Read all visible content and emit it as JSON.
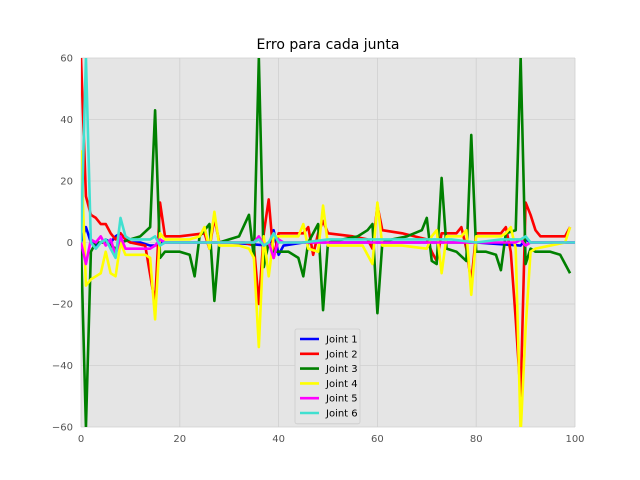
{
  "chart_data": {
    "type": "line",
    "title": "Erro para cada junta",
    "xlabel": "",
    "ylabel": "",
    "xlim": [
      0,
      100
    ],
    "ylim": [
      -60,
      60
    ],
    "x_ticks": [
      0,
      20,
      40,
      60,
      80,
      100
    ],
    "y_ticks": [
      -60,
      -40,
      -20,
      0,
      20,
      40,
      60
    ],
    "grid": true,
    "legend_position": "lower-center",
    "background": "#e5e5e5",
    "series": [
      {
        "name": "Joint 1",
        "color": "#0000ff",
        "points": [
          [
            0,
            0
          ],
          [
            1,
            5
          ],
          [
            2,
            0
          ],
          [
            3,
            -1
          ],
          [
            4,
            0
          ],
          [
            5,
            1
          ],
          [
            6,
            0
          ],
          [
            7,
            2
          ],
          [
            8,
            3
          ],
          [
            9,
            1
          ],
          [
            10,
            0
          ],
          [
            12,
            0
          ],
          [
            14,
            -1
          ],
          [
            15,
            -1
          ],
          [
            16,
            0
          ],
          [
            20,
            0
          ],
          [
            30,
            0
          ],
          [
            38,
            -1
          ],
          [
            39,
            4
          ],
          [
            40,
            -4
          ],
          [
            41,
            -1
          ],
          [
            45,
            0
          ],
          [
            50,
            0
          ],
          [
            60,
            0
          ],
          [
            70,
            0
          ],
          [
            80,
            0
          ],
          [
            89,
            -1
          ],
          [
            90,
            1
          ],
          [
            91,
            0
          ],
          [
            100,
            0
          ]
        ]
      },
      {
        "name": "Joint 2",
        "color": "#ff0000",
        "points": [
          [
            0,
            60
          ],
          [
            1,
            15
          ],
          [
            2,
            9
          ],
          [
            3,
            8
          ],
          [
            4,
            6
          ],
          [
            5,
            6
          ],
          [
            6,
            3
          ],
          [
            7,
            1
          ],
          [
            8,
            3
          ],
          [
            9,
            1
          ],
          [
            10,
            0
          ],
          [
            13,
            -1
          ],
          [
            15,
            -20
          ],
          [
            16,
            13
          ],
          [
            17,
            2
          ],
          [
            20,
            2
          ],
          [
            25,
            3
          ],
          [
            26,
            -2
          ],
          [
            27,
            8
          ],
          [
            28,
            0
          ],
          [
            33,
            0
          ],
          [
            35,
            -1
          ],
          [
            36,
            -20
          ],
          [
            37,
            3
          ],
          [
            38,
            14
          ],
          [
            39,
            -5
          ],
          [
            40,
            3
          ],
          [
            45,
            3
          ],
          [
            46,
            5
          ],
          [
            47,
            -4
          ],
          [
            48,
            3
          ],
          [
            49,
            7
          ],
          [
            50,
            3
          ],
          [
            55,
            2
          ],
          [
            58,
            1
          ],
          [
            59,
            -2
          ],
          [
            60,
            12
          ],
          [
            61,
            4
          ],
          [
            65,
            3
          ],
          [
            70,
            1
          ],
          [
            71,
            -3
          ],
          [
            72,
            -6
          ],
          [
            73,
            3
          ],
          [
            76,
            3
          ],
          [
            77,
            5
          ],
          [
            78,
            -2
          ],
          [
            79,
            -13
          ],
          [
            80,
            3
          ],
          [
            85,
            3
          ],
          [
            86,
            5
          ],
          [
            87,
            -3
          ],
          [
            88,
            -25
          ],
          [
            89,
            -50
          ],
          [
            90,
            13
          ],
          [
            91,
            9
          ],
          [
            92,
            4
          ],
          [
            93,
            2
          ],
          [
            95,
            2
          ],
          [
            98,
            2
          ],
          [
            99,
            5
          ]
        ]
      },
      {
        "name": "Joint 3",
        "color": "#008000",
        "points": [
          [
            0,
            0
          ],
          [
            1,
            -60
          ],
          [
            2,
            -3
          ],
          [
            3,
            0
          ],
          [
            5,
            0
          ],
          [
            7,
            -2
          ],
          [
            8,
            0
          ],
          [
            10,
            1
          ],
          [
            12,
            2
          ],
          [
            14,
            5
          ],
          [
            15,
            43
          ],
          [
            16,
            -5
          ],
          [
            17,
            -3
          ],
          [
            20,
            -3
          ],
          [
            22,
            -4
          ],
          [
            23,
            -11
          ],
          [
            24,
            2
          ],
          [
            25,
            4
          ],
          [
            26,
            6
          ],
          [
            27,
            -19
          ],
          [
            28,
            0
          ],
          [
            30,
            1
          ],
          [
            32,
            2
          ],
          [
            34,
            9
          ],
          [
            35,
            -5
          ],
          [
            36,
            60
          ],
          [
            37,
            -8
          ],
          [
            38,
            0
          ],
          [
            39,
            -3
          ],
          [
            42,
            -3
          ],
          [
            44,
            -5
          ],
          [
            45,
            -11
          ],
          [
            46,
            0
          ],
          [
            48,
            6
          ],
          [
            49,
            -22
          ],
          [
            50,
            0
          ],
          [
            53,
            1
          ],
          [
            56,
            2
          ],
          [
            58,
            4
          ],
          [
            59,
            6
          ],
          [
            60,
            -23
          ],
          [
            61,
            0
          ],
          [
            63,
            1
          ],
          [
            66,
            2
          ],
          [
            69,
            4
          ],
          [
            70,
            8
          ],
          [
            71,
            -6
          ],
          [
            72,
            -7
          ],
          [
            73,
            21
          ],
          [
            74,
            -2
          ],
          [
            76,
            -3
          ],
          [
            78,
            -6
          ],
          [
            79,
            35
          ],
          [
            80,
            -3
          ],
          [
            82,
            -3
          ],
          [
            84,
            -4
          ],
          [
            85,
            -9
          ],
          [
            86,
            3
          ],
          [
            88,
            4
          ],
          [
            89,
            60
          ],
          [
            90,
            -7
          ],
          [
            91,
            -2
          ],
          [
            92,
            -3
          ],
          [
            95,
            -3
          ],
          [
            97,
            -4
          ],
          [
            99,
            -10
          ]
        ]
      },
      {
        "name": "Joint 4",
        "color": "#ffff00",
        "points": [
          [
            0,
            30
          ],
          [
            1,
            -14
          ],
          [
            2,
            -12
          ],
          [
            3,
            -11
          ],
          [
            4,
            -10
          ],
          [
            5,
            -3
          ],
          [
            6,
            -10
          ],
          [
            7,
            -11
          ],
          [
            8,
            0
          ],
          [
            9,
            -4
          ],
          [
            13,
            -4
          ],
          [
            14,
            -5
          ],
          [
            15,
            -25
          ],
          [
            16,
            3
          ],
          [
            17,
            1
          ],
          [
            20,
            1
          ],
          [
            22,
            1
          ],
          [
            24,
            2
          ],
          [
            25,
            5
          ],
          [
            26,
            -2
          ],
          [
            27,
            10
          ],
          [
            28,
            -1
          ],
          [
            32,
            -1
          ],
          [
            34,
            -2
          ],
          [
            35,
            -5
          ],
          [
            36,
            -34
          ],
          [
            37,
            2
          ],
          [
            38,
            -11
          ],
          [
            39,
            2
          ],
          [
            44,
            2
          ],
          [
            45,
            6
          ],
          [
            46,
            -2
          ],
          [
            48,
            -3
          ],
          [
            49,
            12
          ],
          [
            50,
            -1
          ],
          [
            55,
            -1
          ],
          [
            57,
            -1
          ],
          [
            58,
            -4
          ],
          [
            59,
            -7
          ],
          [
            60,
            13
          ],
          [
            61,
            -1
          ],
          [
            65,
            -1
          ],
          [
            70,
            -2
          ],
          [
            71,
            2
          ],
          [
            72,
            4
          ],
          [
            73,
            -10
          ],
          [
            74,
            2
          ],
          [
            77,
            2
          ],
          [
            78,
            4
          ],
          [
            79,
            -17
          ],
          [
            80,
            2
          ],
          [
            85,
            2
          ],
          [
            86,
            3
          ],
          [
            87,
            5
          ],
          [
            88,
            -2
          ],
          [
            89,
            -62
          ],
          [
            90,
            -28
          ],
          [
            91,
            -3
          ],
          [
            92,
            -2
          ],
          [
            95,
            -1
          ],
          [
            98,
            0
          ],
          [
            99,
            5
          ]
        ]
      },
      {
        "name": "Joint 5",
        "color": "#ff00ff",
        "points": [
          [
            0,
            0
          ],
          [
            1,
            -7
          ],
          [
            2,
            1
          ],
          [
            3,
            0
          ],
          [
            4,
            2
          ],
          [
            5,
            -1
          ],
          [
            6,
            1
          ],
          [
            7,
            -4
          ],
          [
            8,
            2
          ],
          [
            9,
            -2
          ],
          [
            10,
            -2
          ],
          [
            14,
            -2
          ],
          [
            15,
            -1
          ],
          [
            16,
            1
          ],
          [
            17,
            0
          ],
          [
            30,
            0
          ],
          [
            35,
            0
          ],
          [
            36,
            2
          ],
          [
            37,
            -1
          ],
          [
            38,
            0
          ],
          [
            39,
            -5
          ],
          [
            40,
            1
          ],
          [
            41,
            0
          ],
          [
            50,
            0
          ],
          [
            60,
            0
          ],
          [
            70,
            0
          ],
          [
            80,
            0
          ],
          [
            88,
            0
          ],
          [
            89,
            1
          ],
          [
            90,
            -1
          ],
          [
            91,
            0
          ],
          [
            100,
            0
          ]
        ]
      },
      {
        "name": "Joint 6",
        "color": "#40e0d0",
        "points": [
          [
            0,
            0
          ],
          [
            1,
            60
          ],
          [
            2,
            0
          ],
          [
            3,
            -2
          ],
          [
            4,
            0
          ],
          [
            5,
            1
          ],
          [
            6,
            -2
          ],
          [
            7,
            -5
          ],
          [
            8,
            8
          ],
          [
            9,
            2
          ],
          [
            10,
            1
          ],
          [
            12,
            1
          ],
          [
            14,
            1
          ],
          [
            15,
            2
          ],
          [
            16,
            -1
          ],
          [
            17,
            0
          ],
          [
            25,
            0
          ],
          [
            35,
            0
          ],
          [
            36,
            1
          ],
          [
            37,
            -1
          ],
          [
            38,
            0
          ],
          [
            39,
            3
          ],
          [
            40,
            0
          ],
          [
            45,
            0
          ],
          [
            50,
            1
          ],
          [
            55,
            1
          ],
          [
            60,
            1
          ],
          [
            65,
            1
          ],
          [
            70,
            1
          ],
          [
            75,
            1
          ],
          [
            80,
            0
          ],
          [
            85,
            1
          ],
          [
            88,
            1
          ],
          [
            89,
            1
          ],
          [
            90,
            2
          ],
          [
            91,
            0
          ],
          [
            95,
            0
          ],
          [
            100,
            0
          ]
        ]
      }
    ]
  }
}
